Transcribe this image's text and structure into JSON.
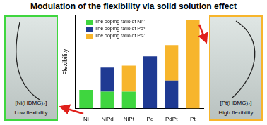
{
  "chart_data": {
    "type": "bar",
    "title": "Modulation of the flexibility via solid solution effect",
    "y_label": "Flexibility",
    "categories": [
      "Ni",
      "NiPd",
      "NiPt",
      "Pd",
      "PdPt",
      "Pt"
    ],
    "series": [
      {
        "name": "The doping ratio of Ni²⁺",
        "color": "#3fd63f",
        "values": [
          20,
          18,
          18,
          0,
          0,
          0
        ]
      },
      {
        "name": "The doping ratio of Pd²⁺",
        "color": "#1f3a93",
        "values": [
          0,
          26,
          0,
          56,
          30,
          0
        ]
      },
      {
        "name": "The doping ratio of Pt²⁺",
        "color": "#f7b52c",
        "values": [
          0,
          0,
          28,
          0,
          38,
          95
        ]
      }
    ],
    "stacked": true,
    "ylim": [
      0,
      100
    ],
    "tick_labels": "x",
    "grid": false,
    "legend": "upper left",
    "annotations": [
      "[Ni(HDMG)₂]",
      "Low flexibility",
      "[Pt(HDMG)₂]",
      "High flexibility"
    ]
  }
}
